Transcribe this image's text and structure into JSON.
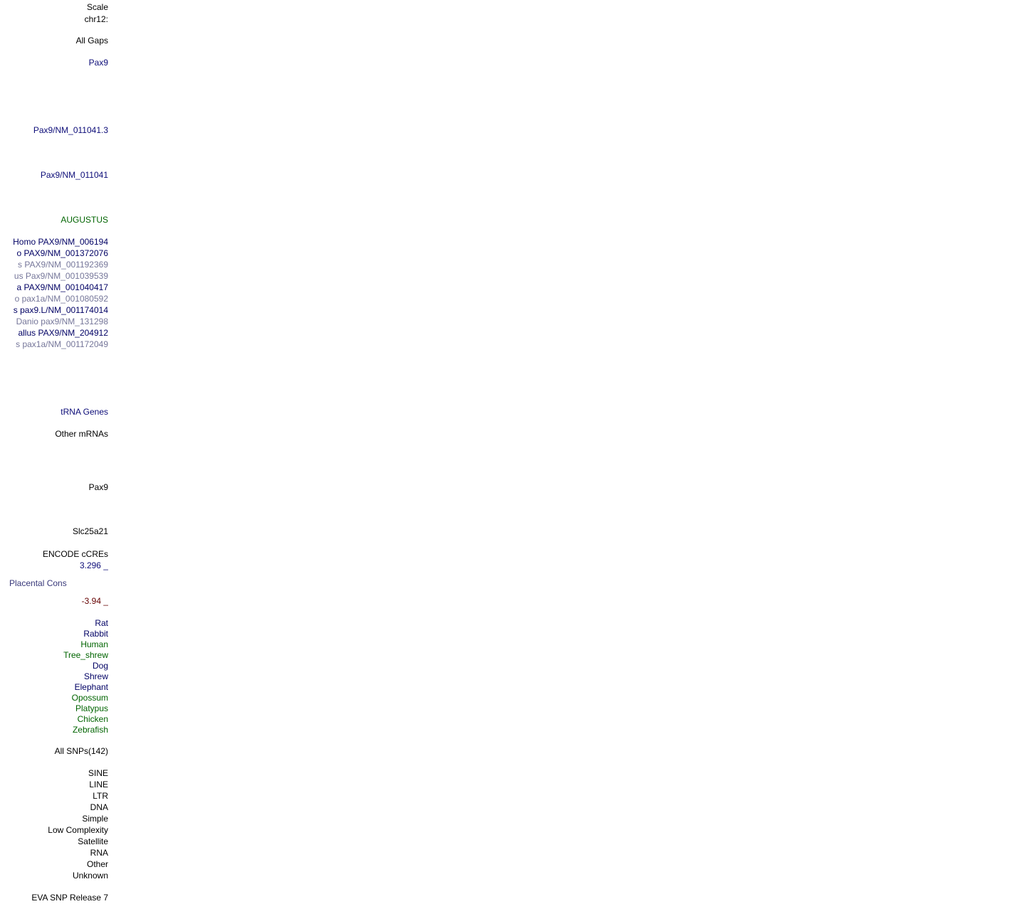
{
  "colors": {
    "black": "#000000",
    "navy": "#0c0c78",
    "dark_navy": "#000064",
    "green": "#006400",
    "muted_blue": "#76779a",
    "dark_red": "#640000",
    "cons_blue": "#38387a"
  },
  "labels": [
    {
      "id": "scale",
      "text": "Scale",
      "color": "#000000"
    },
    {
      "id": "chrom",
      "text": "chr12:",
      "color": "#000000"
    },
    {
      "id": "all-gaps",
      "text": "All Gaps",
      "color": "#000000"
    },
    {
      "id": "pax9-gene",
      "text": "Pax9",
      "color": "#0c0c78"
    },
    {
      "id": "pax9-nm-011041-3",
      "text": "Pax9/NM_011041.3",
      "color": "#0c0c78"
    },
    {
      "id": "pax9-nm-011041",
      "text": "Pax9/NM_011041",
      "color": "#0c0c78"
    },
    {
      "id": "augustus",
      "text": "AUGUSTUS",
      "color": "#006400"
    },
    {
      "id": "xeno-homo",
      "text": "Homo PAX9/NM_006194",
      "color": "#000064"
    },
    {
      "id": "xeno-2",
      "text": "o PAX9/NM_001372076",
      "color": "#000064"
    },
    {
      "id": "xeno-3",
      "text": "s PAX9/NM_001192369",
      "color": "#76779a"
    },
    {
      "id": "xeno-4",
      "text": "us Pax9/NM_001039539",
      "color": "#76779a"
    },
    {
      "id": "xeno-5",
      "text": "a PAX9/NM_001040417",
      "color": "#000064"
    },
    {
      "id": "xeno-6",
      "text": "o pax1a/NM_001080592",
      "color": "#76779a"
    },
    {
      "id": "xeno-7",
      "text": "s pax9.L/NM_001174014",
      "color": "#000064"
    },
    {
      "id": "xeno-danio",
      "text": "Danio pax9/NM_131298",
      "color": "#76779a"
    },
    {
      "id": "xeno-gallus",
      "text": "allus PAX9/NM_204912",
      "color": "#000064"
    },
    {
      "id": "xeno-10",
      "text": "s pax1a/NM_001172049",
      "color": "#76779a"
    },
    {
      "id": "trna-genes",
      "text": "tRNA Genes",
      "color": "#0c0c78"
    },
    {
      "id": "other-mrnas",
      "text": "Other mRNAs",
      "color": "#000000"
    },
    {
      "id": "pax9-mrna",
      "text": "Pax9",
      "color": "#000000"
    },
    {
      "id": "slc25a21",
      "text": "Slc25a21",
      "color": "#000000"
    },
    {
      "id": "encode-ccres",
      "text": "ENCODE cCREs",
      "color": "#000000"
    },
    {
      "id": "cons-max",
      "text": "3.296 _",
      "color": "#0c0c78"
    },
    {
      "id": "placental-cons",
      "text": "Placental Cons",
      "color": "#38387a",
      "align": "left"
    },
    {
      "id": "cons-min",
      "text": "-3.94 _",
      "color": "#640000"
    },
    {
      "id": "sp-rat",
      "text": "Rat",
      "color": "#000064"
    },
    {
      "id": "sp-rabbit",
      "text": "Rabbit",
      "color": "#000064"
    },
    {
      "id": "sp-human",
      "text": "Human",
      "color": "#006400"
    },
    {
      "id": "sp-tree-shrew",
      "text": "Tree_shrew",
      "color": "#006400"
    },
    {
      "id": "sp-dog",
      "text": "Dog",
      "color": "#000064"
    },
    {
      "id": "sp-shrew",
      "text": "Shrew",
      "color": "#000064"
    },
    {
      "id": "sp-elephant",
      "text": "Elephant",
      "color": "#000064"
    },
    {
      "id": "sp-opossum",
      "text": "Opossum",
      "color": "#006400"
    },
    {
      "id": "sp-platypus",
      "text": "Platypus",
      "color": "#006400"
    },
    {
      "id": "sp-chicken",
      "text": "Chicken",
      "color": "#006400"
    },
    {
      "id": "sp-zebrafish",
      "text": "Zebrafish",
      "color": "#006400"
    },
    {
      "id": "all-snps",
      "text": "All SNPs(142)",
      "color": "#000000"
    },
    {
      "id": "rm-sine",
      "text": "SINE",
      "color": "#000000"
    },
    {
      "id": "rm-line",
      "text": "LINE",
      "color": "#000000"
    },
    {
      "id": "rm-ltr",
      "text": "LTR",
      "color": "#000000"
    },
    {
      "id": "rm-dna",
      "text": "DNA",
      "color": "#000000"
    },
    {
      "id": "rm-simple",
      "text": "Simple",
      "color": "#000000"
    },
    {
      "id": "rm-low-complexity",
      "text": "Low Complexity",
      "color": "#000000"
    },
    {
      "id": "rm-satellite",
      "text": "Satellite",
      "color": "#000000"
    },
    {
      "id": "rm-rna",
      "text": "RNA",
      "color": "#000000"
    },
    {
      "id": "rm-other",
      "text": "Other",
      "color": "#000000"
    },
    {
      "id": "rm-unknown",
      "text": "Unknown",
      "color": "#000000"
    },
    {
      "id": "eva-snp",
      "text": "EVA SNP Release 7",
      "color": "#000000"
    }
  ]
}
